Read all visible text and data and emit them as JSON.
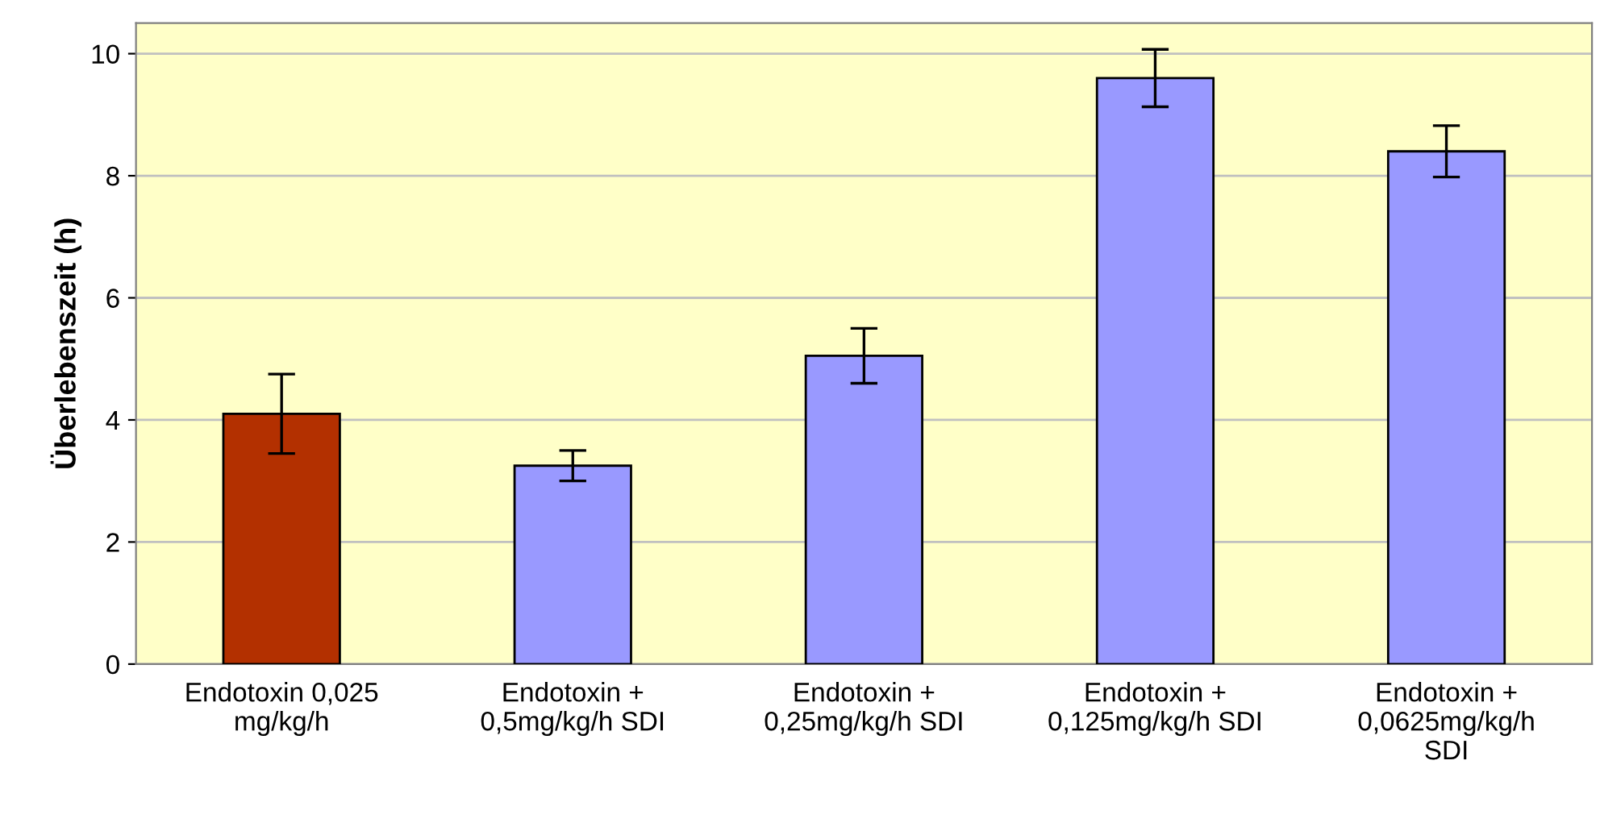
{
  "chart_data": {
    "type": "bar",
    "ylabel": "Überlebenszeit (h)",
    "categories": [
      "Endotoxin 0,025\nmg/kg/h",
      "Endotoxin +\n0,5mg/kg/h SDI",
      "Endotoxin +\n0,25mg/kg/h SDI",
      "Endotoxin +\n0,125mg/kg/h SDI",
      "Endotoxin +\n0,0625mg/kg/h\nSDI"
    ],
    "values": [
      4.1,
      3.25,
      5.05,
      9.6,
      8.4
    ],
    "errors": [
      0.65,
      0.25,
      0.45,
      0.47,
      0.42
    ],
    "colors": [
      "#b33000",
      "#9999ff",
      "#9999ff",
      "#9999ff",
      "#9999ff"
    ],
    "ylim": [
      0,
      10.5
    ],
    "yticks": [
      0,
      2,
      4,
      6,
      8,
      10
    ],
    "grid": "y"
  }
}
